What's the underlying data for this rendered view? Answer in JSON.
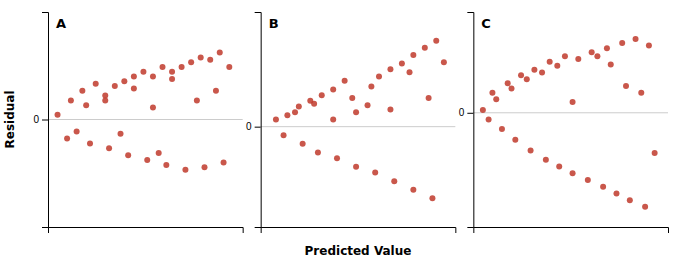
{
  "chart_data": [
    {
      "type": "scatter",
      "title": "A",
      "ylabel": "Residual",
      "color": "#c0392b",
      "x": [
        0.05,
        0.12,
        0.18,
        0.25,
        0.3,
        0.35,
        0.4,
        0.45,
        0.5,
        0.55,
        0.6,
        0.65,
        0.7,
        0.75,
        0.8,
        0.85,
        0.9,
        0.95,
        0.15,
        0.22,
        0.32,
        0.42,
        0.52,
        0.62,
        0.72,
        0.82,
        0.92,
        0.2,
        0.3,
        0.45,
        0.55,
        0.65,
        0.78,
        0.88,
        0.1,
        0.38,
        0.58
      ],
      "values": [
        0.02,
        0.08,
        0.12,
        0.15,
        0.1,
        0.14,
        0.16,
        0.18,
        0.2,
        0.18,
        0.22,
        0.2,
        0.22,
        0.24,
        0.26,
        0.25,
        0.28,
        0.22,
        -0.05,
        -0.1,
        -0.12,
        -0.15,
        -0.17,
        -0.19,
        -0.21,
        -0.2,
        -0.18,
        0.06,
        0.08,
        0.13,
        0.05,
        0.17,
        0.08,
        0.12,
        -0.08,
        -0.06,
        -0.14
      ],
      "xlim": [
        0.0,
        1.02
      ],
      "xticks": [],
      "ylim": [
        -0.45,
        0.45
      ],
      "yticks": [
        0
      ],
      "grid": true,
      "tick_labels": "y"
    },
    {
      "type": "scatter",
      "title": "B",
      "xlabel": "Predicted Value",
      "color": "#c0392b",
      "x": [
        0.08,
        0.14,
        0.2,
        0.26,
        0.32,
        0.38,
        0.44,
        0.5,
        0.56,
        0.62,
        0.68,
        0.74,
        0.8,
        0.86,
        0.92,
        0.12,
        0.22,
        0.3,
        0.4,
        0.5,
        0.6,
        0.7,
        0.8,
        0.9,
        0.18,
        0.28,
        0.38,
        0.48,
        0.58,
        0.68,
        0.78,
        0.88,
        0.96
      ],
      "values": [
        0.05,
        0.08,
        0.14,
        0.18,
        0.22,
        0.26,
        0.32,
        0.1,
        0.15,
        0.35,
        0.4,
        0.44,
        0.5,
        0.55,
        0.6,
        -0.06,
        -0.12,
        -0.18,
        -0.22,
        -0.28,
        -0.32,
        -0.38,
        -0.44,
        -0.5,
        0.1,
        0.16,
        0.05,
        0.2,
        0.28,
        0.12,
        0.38,
        0.2,
        0.45
      ],
      "xlim": [
        0.0,
        1.02
      ],
      "xticks": [],
      "ylim": [
        -0.7,
        0.8
      ],
      "yticks": [
        0
      ],
      "grid": true,
      "tick_labels": "y"
    },
    {
      "type": "scatter",
      "title": "C",
      "color": "#c0392b",
      "x": [
        0.05,
        0.1,
        0.18,
        0.25,
        0.32,
        0.4,
        0.48,
        0.55,
        0.62,
        0.7,
        0.78,
        0.85,
        0.92,
        0.08,
        0.15,
        0.22,
        0.3,
        0.38,
        0.45,
        0.52,
        0.6,
        0.68,
        0.75,
        0.82,
        0.9,
        0.12,
        0.2,
        0.28,
        0.36,
        0.44,
        0.52,
        0.65,
        0.72,
        0.8,
        0.88,
        0.95
      ],
      "values": [
        0.02,
        0.15,
        0.22,
        0.28,
        0.32,
        0.38,
        0.42,
        0.4,
        0.45,
        0.48,
        0.52,
        0.55,
        0.5,
        -0.05,
        -0.12,
        -0.2,
        -0.28,
        -0.35,
        -0.4,
        -0.45,
        -0.5,
        -0.55,
        -0.6,
        -0.65,
        -0.7,
        0.1,
        0.18,
        0.25,
        0.3,
        0.35,
        0.08,
        0.42,
        0.36,
        0.2,
        0.15,
        -0.3
      ],
      "xlim": [
        0.0,
        1.02
      ],
      "xticks": [],
      "ylim": [
        -0.85,
        0.75
      ],
      "yticks": [
        0
      ],
      "grid": true,
      "tick_labels": "y"
    }
  ]
}
